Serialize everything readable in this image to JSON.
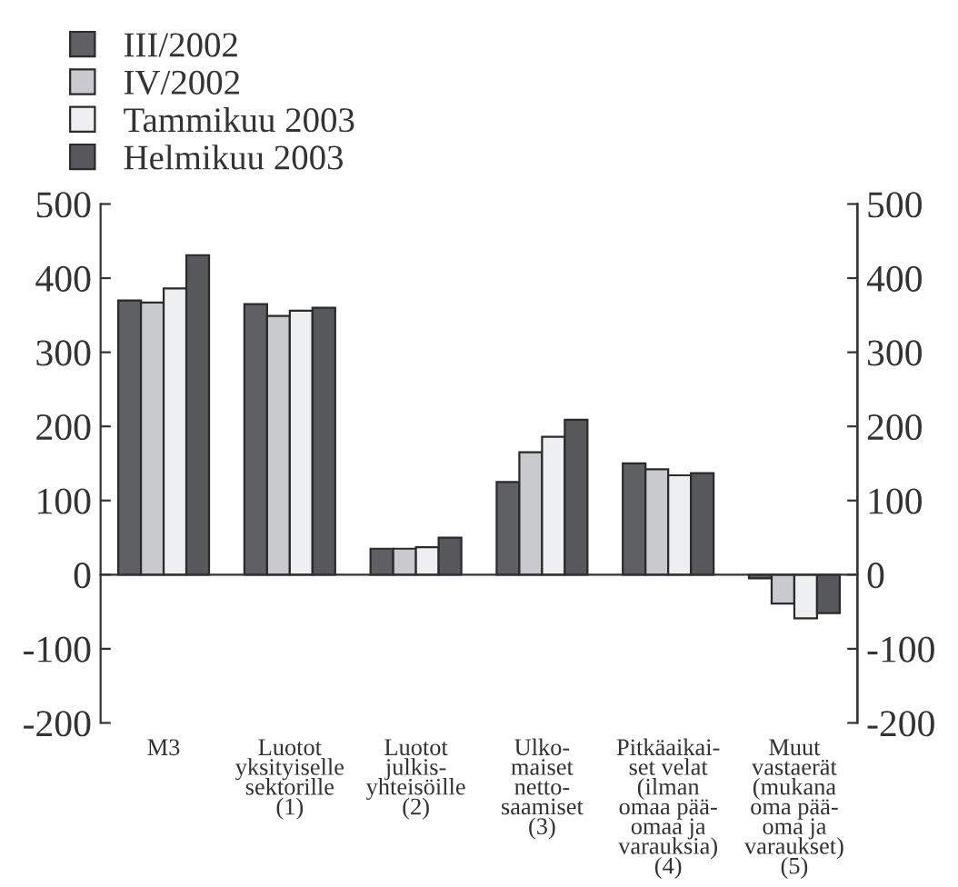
{
  "chart_data": {
    "type": "bar",
    "categories": [
      "M3",
      "Luotot\nyksityiselle\nsektorille\n(1)",
      "Luotot\njulkis-\nyhteisöille\n(2)",
      "Ulko-\nmaiset\nnetto-\nsaamiset\n(3)",
      "Pitkäaikai-\nset velat\n(ilman\nomaa pää-\nomaa ja\nvarauksia)\n(4)",
      "Muut\nvastaerät\n(mukana\noma pää-\noma ja\nvaraukset)\n(5)"
    ],
    "series": [
      {
        "name": "III/2002",
        "color": "#5f6064",
        "values": [
          370,
          365,
          35,
          125,
          150,
          -5
        ]
      },
      {
        "name": "IV/2002",
        "color": "#c9cacd",
        "values": [
          367,
          349,
          35,
          165,
          142,
          -39
        ]
      },
      {
        "name": "Tammikuu 2003",
        "color": "#eeeff1",
        "values": [
          386,
          356,
          37,
          186,
          134,
          -59
        ]
      },
      {
        "name": "Helmikuu 2003",
        "color": "#56585b",
        "values": [
          431,
          360,
          50,
          209,
          137,
          -52
        ]
      }
    ],
    "ylim": [
      -200,
      500
    ],
    "yticks": [
      -200,
      -100,
      0,
      100,
      200,
      300,
      400,
      500
    ],
    "y2lim": [
      -200,
      500
    ],
    "y2ticks": [
      -200,
      -100,
      0,
      100,
      200,
      300,
      400,
      500
    ],
    "legend": "top left"
  }
}
